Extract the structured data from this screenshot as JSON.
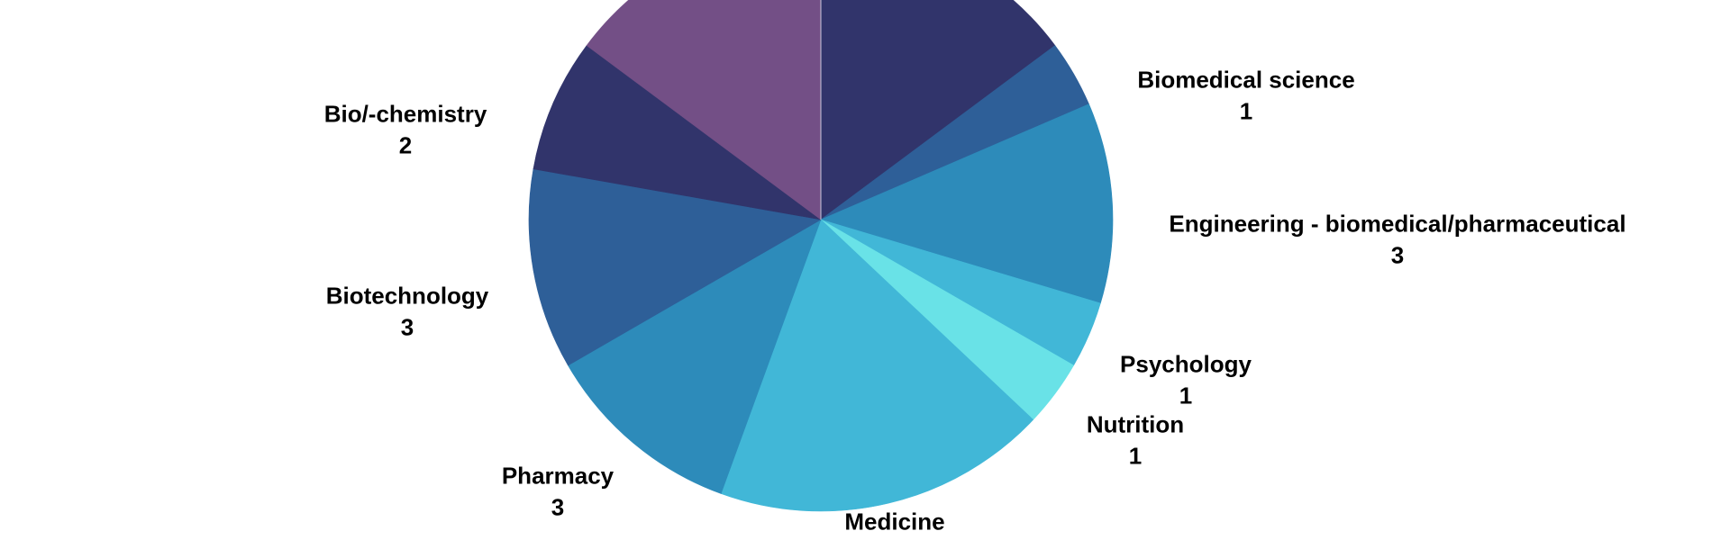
{
  "chart_data": {
    "type": "pie",
    "title": "",
    "slices": [
      {
        "label": "",
        "value": 4,
        "color": "#31346b"
      },
      {
        "label": "Biomedical science",
        "value": 1,
        "color": "#2e5f98"
      },
      {
        "label": "Engineering - biomedical/pharmaceutical",
        "value": 3,
        "color": "#2d8bba"
      },
      {
        "label": "Psychology",
        "value": 1,
        "color": "#41b7d7"
      },
      {
        "label": "Nutrition",
        "value": 1,
        "color": "#69e2e7"
      },
      {
        "label": "Medicine",
        "value": 5,
        "color": "#41b7d7"
      },
      {
        "label": "Pharmacy",
        "value": 3,
        "color": "#2d8bba"
      },
      {
        "label": "Biotechnology",
        "value": 3,
        "color": "#2e5f98"
      },
      {
        "label": "Bio/-chemistry",
        "value": 2,
        "color": "#31346b"
      },
      {
        "label": "",
        "value": 4,
        "color": "#734f86"
      }
    ],
    "start_angle_deg": 0,
    "direction": "clockwise",
    "legend": "none",
    "data_labels": "outside"
  }
}
